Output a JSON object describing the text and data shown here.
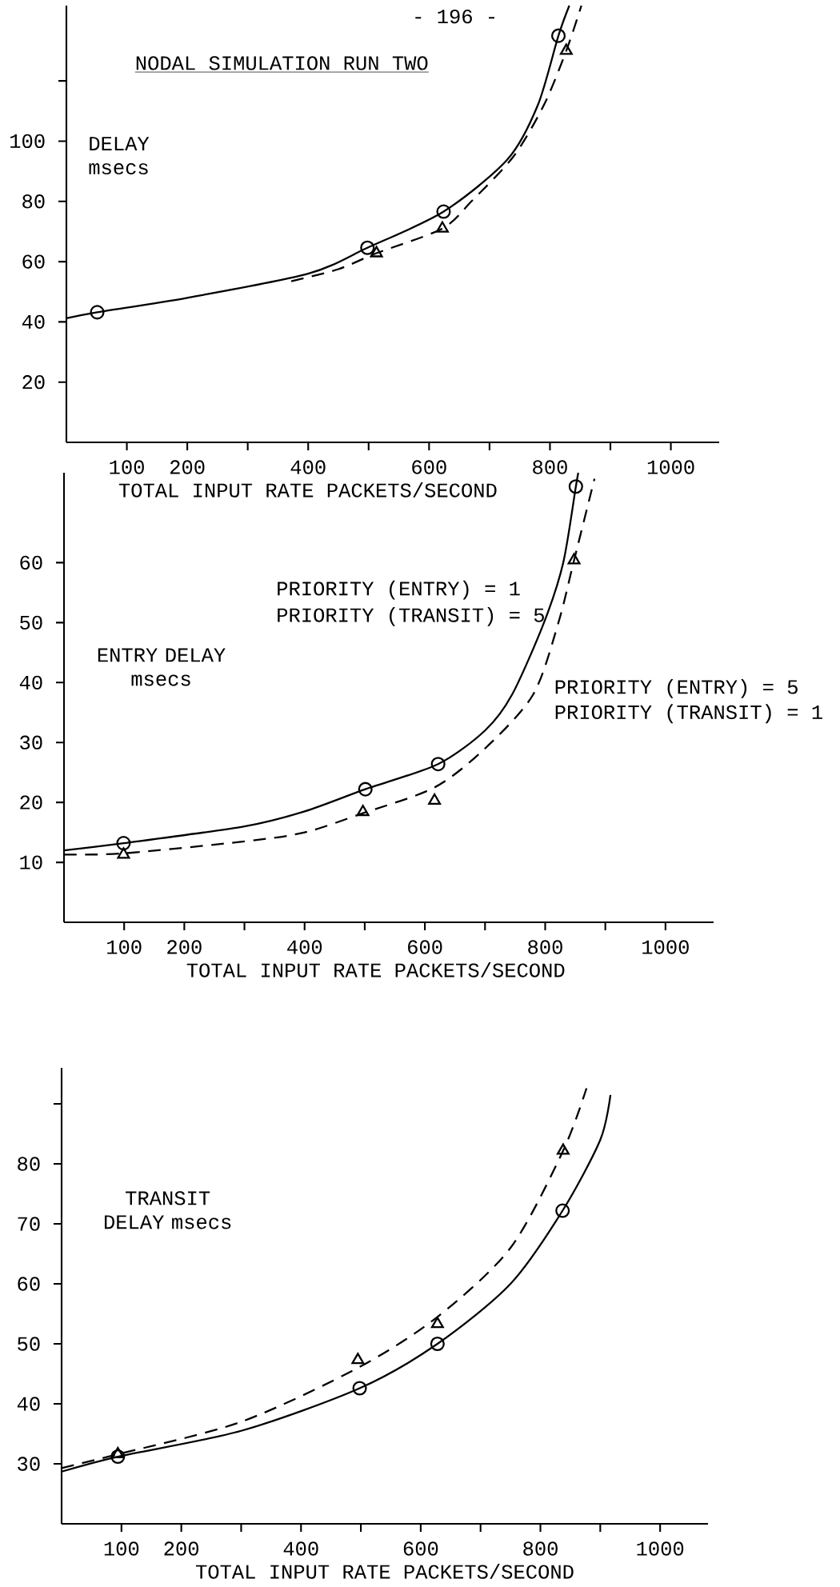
{
  "chart_data": [
    {
      "type": "line",
      "title": "NODAL SIMULATION RUN TWO",
      "xlabel": "TOTAL INPUT RATE PACKETS/SECOND",
      "ylabel": "DELAY msecs",
      "annotations": [
        "- 196 -"
      ],
      "xlim": [
        0,
        1080
      ],
      "ylim": [
        0,
        145
      ],
      "xticks": [
        100,
        200,
        {
          "value": 300,
          "label": null
        },
        400,
        {
          "value": 500,
          "label": null
        },
        600,
        {
          "value": 700,
          "label": null
        },
        800,
        {
          "value": 900,
          "label": null
        },
        1000
      ],
      "yticks": [
        20,
        40,
        60,
        80,
        100,
        {
          "value": 120,
          "label": null
        }
      ],
      "series": [
        {
          "type": "line",
          "line_style": "solid",
          "color": "#000000",
          "x": [
            0,
            51,
            200,
            400,
            498,
            624,
            730,
            780,
            814,
            832
          ],
          "values": [
            41.2,
            43.2,
            48,
            56,
            64.6,
            76.6,
            94,
            112,
            135,
            145
          ]
        },
        {
          "type": "line",
          "line_style": "dashed",
          "color": "#000000",
          "x": [
            372,
            450,
            513,
            622,
            670,
            740,
            790,
            827,
            852
          ],
          "values": [
            53.5,
            57.5,
            62.8,
            71,
            80,
            95,
            112,
            130,
            145
          ]
        },
        {
          "type": "scatter",
          "marker": "circle",
          "color": "#000000",
          "x": [
            51,
            498,
            624,
            814
          ],
          "values": [
            43.2,
            64.6,
            76.6,
            135
          ]
        },
        {
          "type": "scatter",
          "marker": "triangle",
          "color": "#000000",
          "x": [
            513,
            622,
            827
          ],
          "values": [
            62.8,
            71,
            130
          ]
        }
      ]
    },
    {
      "type": "line",
      "xlabel": "TOTAL INPUT RATE PACKETS/SECOND",
      "ylabel": "ENTRY DELAY msecs",
      "annotations": [
        "PRIORITY (ENTRY) = 1",
        "PRIORITY (TRANSIT) = 5",
        "PRIORITY (ENTRY) = 5",
        "PRIORITY (TRANSIT) = 1"
      ],
      "xlim": [
        0,
        1080
      ],
      "ylim": [
        0,
        75
      ],
      "xticks": [
        100,
        200,
        {
          "value": 300,
          "label": null
        },
        400,
        {
          "value": 500,
          "label": null
        },
        600,
        {
          "value": 700,
          "label": null
        },
        800,
        {
          "value": 900,
          "label": null
        },
        1000
      ],
      "yticks": [
        10,
        20,
        30,
        40,
        50,
        60
      ],
      "series": [
        {
          "type": "line",
          "line_style": "solid",
          "color": "#000000",
          "x": [
            0,
            99,
            300,
            400,
            501,
            622,
            700,
            745,
            798,
            830,
            851,
            855
          ],
          "values": [
            12,
            13.2,
            16,
            18.5,
            22.2,
            26.4,
            32,
            38,
            50,
            60,
            72.7,
            75
          ]
        },
        {
          "type": "line",
          "line_style": "dashed",
          "color": "#000000",
          "x": [
            0,
            99,
            300,
            400,
            497,
            616,
            700,
            780,
            822,
            848,
            882
          ],
          "values": [
            11.3,
            11.5,
            13.5,
            15,
            18.2,
            22.5,
            29,
            38,
            50,
            60.4,
            74
          ]
        },
        {
          "type": "scatter",
          "marker": "circle",
          "color": "#000000",
          "x": [
            99,
            501,
            622,
            851
          ],
          "values": [
            13.2,
            22.2,
            26.4,
            72.7
          ]
        },
        {
          "type": "scatter",
          "marker": "triangle",
          "color": "#000000",
          "x": [
            99,
            497,
            616,
            848
          ],
          "values": [
            11.3,
            18.4,
            20.3,
            60.4
          ]
        }
      ]
    },
    {
      "type": "line",
      "xlabel": "TOTAL INPUT RATE PACKETS/SECOND",
      "ylabel": "TRANSIT DELAY msecs",
      "xlim": [
        0,
        1080
      ],
      "ylim": [
        20,
        96
      ],
      "xticks": [
        100,
        200,
        {
          "value": 300,
          "label": null
        },
        400,
        {
          "value": 500,
          "label": null
        },
        600,
        {
          "value": 700,
          "label": null
        },
        800,
        {
          "value": 900,
          "label": null
        },
        1000
      ],
      "yticks": [
        30,
        40,
        50,
        60,
        70,
        80,
        {
          "value": 90,
          "label": null
        }
      ],
      "series": [
        {
          "type": "line",
          "line_style": "solid",
          "color": "#000000",
          "x": [
            0,
            94,
            300,
            498,
            628,
            750,
            837,
            900,
            917
          ],
          "values": [
            28.7,
            31.2,
            35.5,
            42.6,
            50,
            60,
            72.2,
            84,
            91.5
          ]
        },
        {
          "type": "line",
          "line_style": "dashed",
          "color": "#000000",
          "x": [
            0,
            94,
            300,
            495,
            628,
            750,
            838,
            877
          ],
          "values": [
            29.3,
            31.6,
            37,
            46,
            54.5,
            66,
            82.2,
            92.6
          ]
        },
        {
          "type": "scatter",
          "marker": "circle",
          "color": "#000000",
          "x": [
            94,
            498,
            628,
            837
          ],
          "values": [
            31.2,
            42.6,
            50,
            72.2
          ]
        },
        {
          "type": "scatter",
          "marker": "triangle",
          "color": "#000000",
          "x": [
            94,
            495,
            628,
            838
          ],
          "values": [
            31.6,
            47.3,
            53.3,
            82.2
          ]
        }
      ]
    }
  ]
}
